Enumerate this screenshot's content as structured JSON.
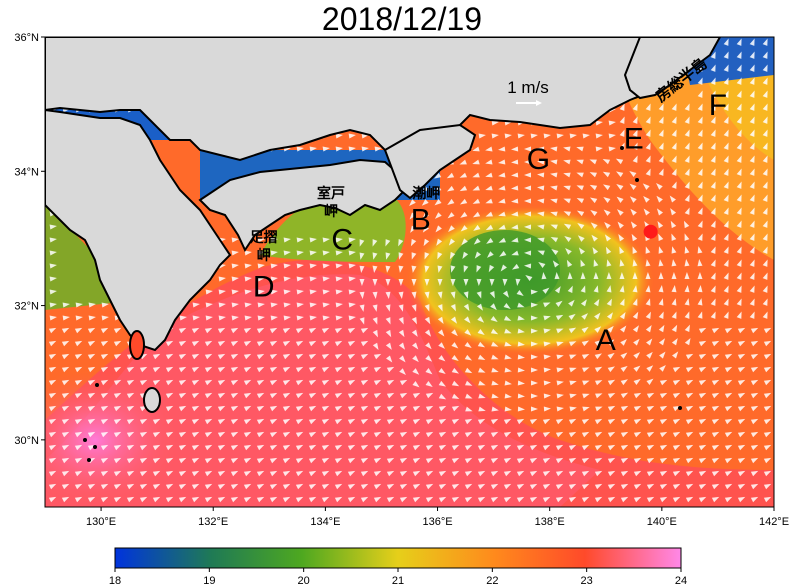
{
  "title": "2018/12/19",
  "map": {
    "lon_range": [
      129,
      142
    ],
    "lat_range": [
      29,
      36
    ],
    "lat_ticks": [
      {
        "value": 36,
        "label": "36°N"
      },
      {
        "value": 34,
        "label": "34°N"
      },
      {
        "value": 32,
        "label": "32°N"
      },
      {
        "value": 30,
        "label": "30°N"
      }
    ],
    "lon_ticks": [
      {
        "value": 130,
        "label": "130°E"
      },
      {
        "value": 132,
        "label": "132°E"
      },
      {
        "value": 134,
        "label": "134°E"
      },
      {
        "value": 136,
        "label": "136°E"
      },
      {
        "value": 138,
        "label": "138°E"
      },
      {
        "value": 140,
        "label": "140°E"
      },
      {
        "value": 142,
        "label": "142°E"
      }
    ],
    "point_labels": [
      {
        "id": "A",
        "text": "A",
        "lon": 139.0,
        "lat": 31.5
      },
      {
        "id": "B",
        "text": "B",
        "lon": 135.7,
        "lat": 33.3
      },
      {
        "id": "C",
        "text": "C",
        "lon": 134.3,
        "lat": 33.0
      },
      {
        "id": "D",
        "text": "D",
        "lon": 132.9,
        "lat": 32.3
      },
      {
        "id": "E",
        "text": "E",
        "lon": 139.5,
        "lat": 34.5
      },
      {
        "id": "F",
        "text": "F",
        "lon": 141.0,
        "lat": 35.0
      },
      {
        "id": "G",
        "text": "G",
        "lon": 137.8,
        "lat": 34.2
      }
    ],
    "place_names": [
      {
        "id": "ashizuri",
        "text": "足摺\n岬",
        "lon": 132.9,
        "lat": 32.95
      },
      {
        "id": "muroto",
        "text": "室戸\n岬",
        "lon": 134.1,
        "lat": 33.6
      },
      {
        "id": "shionomisaki",
        "text": "潮岬",
        "lon": 135.8,
        "lat": 33.6
      },
      {
        "id": "boso",
        "text": "房総半島",
        "lon": 140.4,
        "lat": 35.3
      }
    ],
    "marker": {
      "lon": 139.8,
      "lat": 33.1,
      "color": "#ff1a1a"
    },
    "scale_label": "1 m/s",
    "land_color": "#d9d9d9",
    "vector_color": "#ffffff"
  },
  "colorbar": {
    "min": 18,
    "max": 24,
    "ticks": [
      "18",
      "19",
      "20",
      "21",
      "22",
      "23",
      "24"
    ],
    "colors": [
      "#0033dd",
      "#1f7a55",
      "#4ea820",
      "#e6cf1a",
      "#ff8a1c",
      "#ff4a2a",
      "#ff88e8"
    ]
  }
}
